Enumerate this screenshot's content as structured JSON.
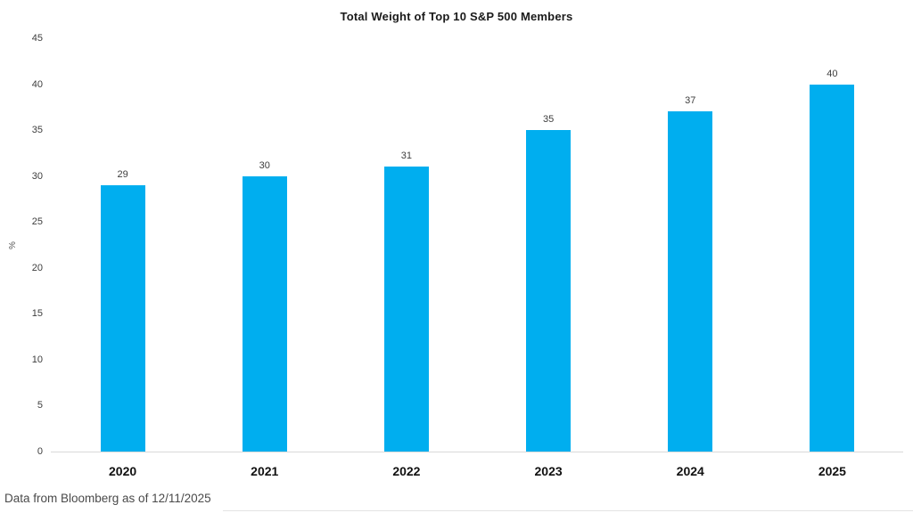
{
  "chart_data": {
    "type": "bar",
    "title": "Total Weight of Top 10 S&P 500 Members",
    "categories": [
      "2020",
      "2021",
      "2022",
      "2023",
      "2024",
      "2025"
    ],
    "values": [
      29,
      30,
      31,
      35,
      37,
      40
    ],
    "xlabel": "",
    "ylabel": "%",
    "ylim": [
      0,
      45
    ],
    "yticks": [
      0,
      5,
      10,
      15,
      20,
      25,
      30,
      35,
      40,
      45
    ],
    "grid": false,
    "legend_position": "none",
    "bar_color": "#00AEEF",
    "data_labels_shown": true
  },
  "footer": {
    "source_note": "Data from Bloomberg as of 12/11/2025"
  }
}
